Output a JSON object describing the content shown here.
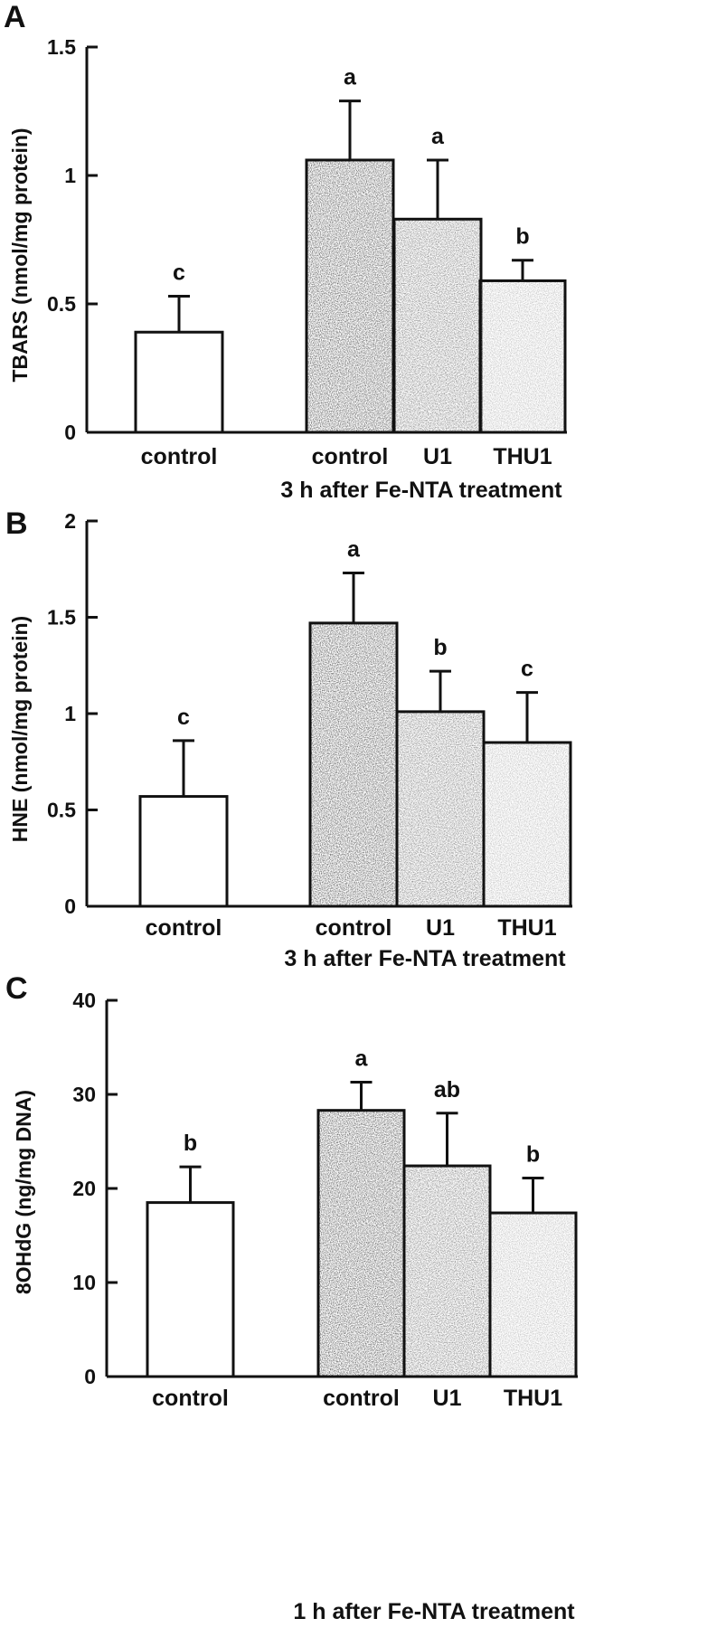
{
  "chart_data": [
    {
      "type": "bar",
      "panel": "A",
      "ylabel": "TBARS (nmol/mg protein)",
      "ylim": [
        0,
        1.5
      ],
      "yticks": [
        "0",
        "0.5",
        "1",
        "1.5"
      ],
      "ytick_values": [
        0,
        0.5,
        1,
        1.5
      ],
      "categories": [
        "control",
        "control",
        "U1",
        "THU1"
      ],
      "values": [
        0.39,
        1.06,
        0.83,
        0.59
      ],
      "errors": [
        0.14,
        0.23,
        0.23,
        0.08
      ],
      "significance": [
        "c",
        "a",
        "a",
        "b"
      ],
      "fills": [
        "#ffffff",
        "#1e1e1e",
        "#565656",
        "#a8a8a8"
      ],
      "group_label": "3 h after Fe-NTA treatment",
      "grid": false
    },
    {
      "type": "bar",
      "panel": "B",
      "ylabel": "HNE (nmol/mg protein)",
      "ylim": [
        0,
        2
      ],
      "yticks": [
        "0",
        "0.5",
        "1",
        "1.5",
        "2"
      ],
      "ytick_values": [
        0,
        0.5,
        1,
        1.5,
        2
      ],
      "categories": [
        "control",
        "control",
        "U1",
        "THU1"
      ],
      "values": [
        0.57,
        1.47,
        1.01,
        0.85
      ],
      "errors": [
        0.29,
        0.26,
        0.21,
        0.26
      ],
      "significance": [
        "c",
        "a",
        "b",
        "c"
      ],
      "fills": [
        "#ffffff",
        "#1e1e1e",
        "#565656",
        "#a8a8a8"
      ],
      "group_label": "3 h after Fe-NTA treatment",
      "grid": false
    },
    {
      "type": "bar",
      "panel": "C",
      "ylabel": "8OHdG (ng/mg DNA)",
      "ylim": [
        0,
        40
      ],
      "yticks": [
        "0",
        "10",
        "20",
        "30",
        "40"
      ],
      "ytick_values": [
        0,
        10,
        20,
        30,
        40
      ],
      "categories": [
        "control",
        "control",
        "U1",
        "THU1"
      ],
      "values": [
        18.5,
        28.3,
        22.4,
        17.4
      ],
      "errors": [
        3.8,
        3.0,
        5.6,
        3.7
      ],
      "significance": [
        "b",
        "a",
        "ab",
        "b"
      ],
      "fills": [
        "#ffffff",
        "#1e1e1e",
        "#565656",
        "#a8a8a8"
      ],
      "group_label": "1 h after Fe-NTA treatment",
      "grid": false
    }
  ]
}
